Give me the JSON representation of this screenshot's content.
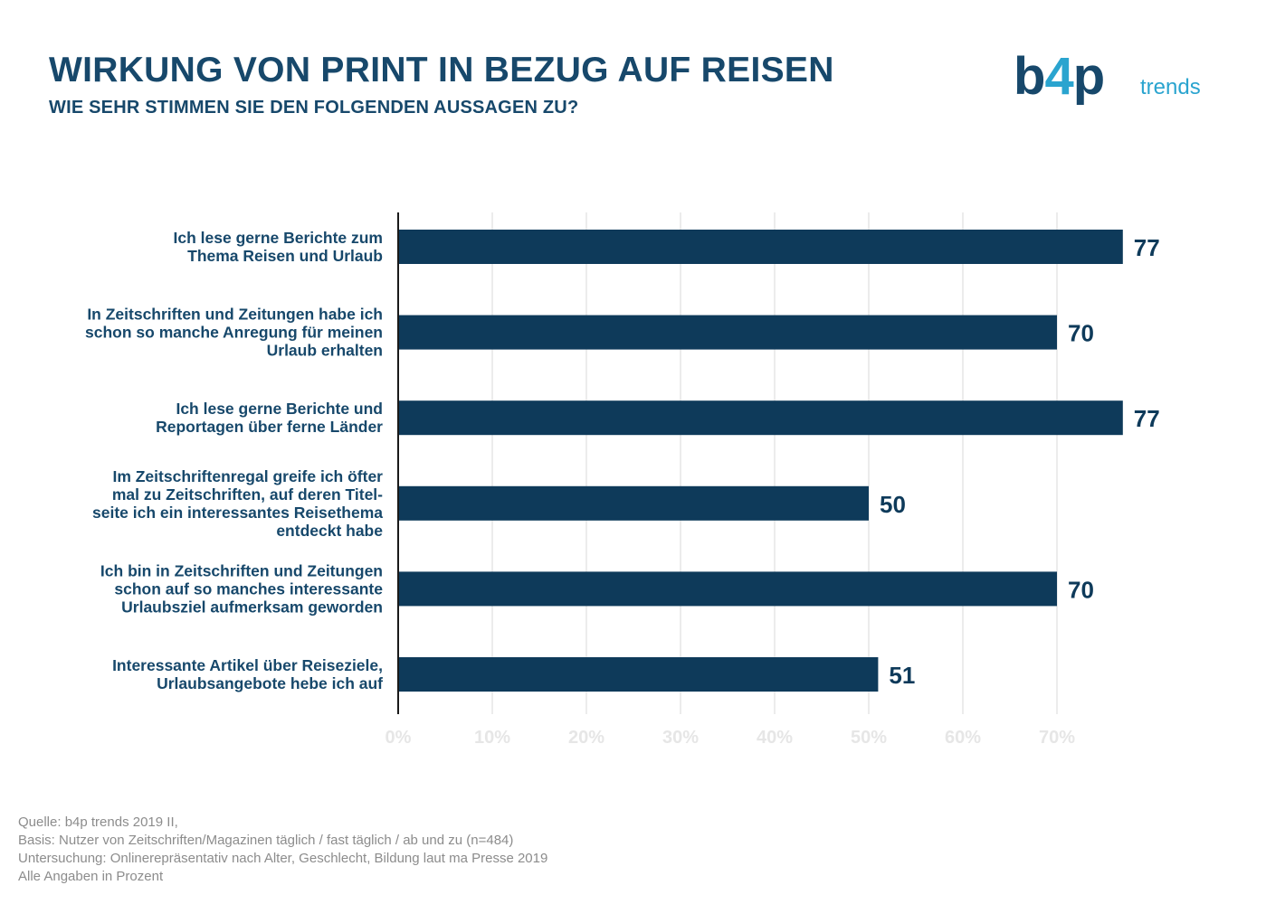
{
  "header": {
    "title": "WIRKUNG VON PRINT IN BEZUG AUF REISEN",
    "subtitle": "WIE SEHR STIMMEN SIE DEN FOLGENDEN AUSSAGEN ZU?"
  },
  "logo": {
    "main_b": "b",
    "main_4": "4",
    "main_p": "p",
    "sub": "trends"
  },
  "colors": {
    "bar": "#0e3a5a",
    "text": "#17486b",
    "accent": "#2aa4cf",
    "grid": "#e6e6e6",
    "tick": "#e6e6e6"
  },
  "chart_data": {
    "type": "bar",
    "orientation": "horizontal",
    "categories": [
      [
        "Ich lese gerne Berichte zum",
        "Thema Reisen und Urlaub"
      ],
      [
        "In Zeitschriften und Zeitungen habe ich",
        "schon so manche Anregung für meinen",
        "Urlaub erhalten"
      ],
      [
        "Ich lese gerne Berichte und",
        "Reportagen über ferne Länder"
      ],
      [
        "Im Zeitschriftenregal greife ich öfter",
        "mal zu Zeitschriften, auf deren Titel-",
        "seite ich ein interessantes Reisethema",
        "entdeckt habe"
      ],
      [
        "Ich bin in Zeitschriften und Zeitungen",
        "schon auf so manches interessante",
        "Urlaubsziel aufmerksam geworden"
      ],
      [
        "Interessante Artikel über Reiseziele,",
        "Urlaubsangebote hebe ich auf"
      ]
    ],
    "values": [
      77,
      70,
      77,
      50,
      70,
      51
    ],
    "value_labels": [
      "77",
      "70",
      "77",
      "50",
      "70",
      "51"
    ],
    "xticks": [
      "0%",
      "10%",
      "20%",
      "30%",
      "40%",
      "50%",
      "60%",
      "70%"
    ],
    "xlim": [
      0,
      80
    ],
    "grid": true
  },
  "footer": {
    "lines": [
      "Quelle: b4p trends 2019 II,",
      "Basis: Nutzer von Zeitschriften/Magazinen täglich / fast täglich / ab und zu (n=484)",
      "Untersuchung: Onlinerepräsentativ nach Alter, Geschlecht, Bildung laut ma Presse 2019",
      "Alle Angaben in Prozent"
    ]
  }
}
